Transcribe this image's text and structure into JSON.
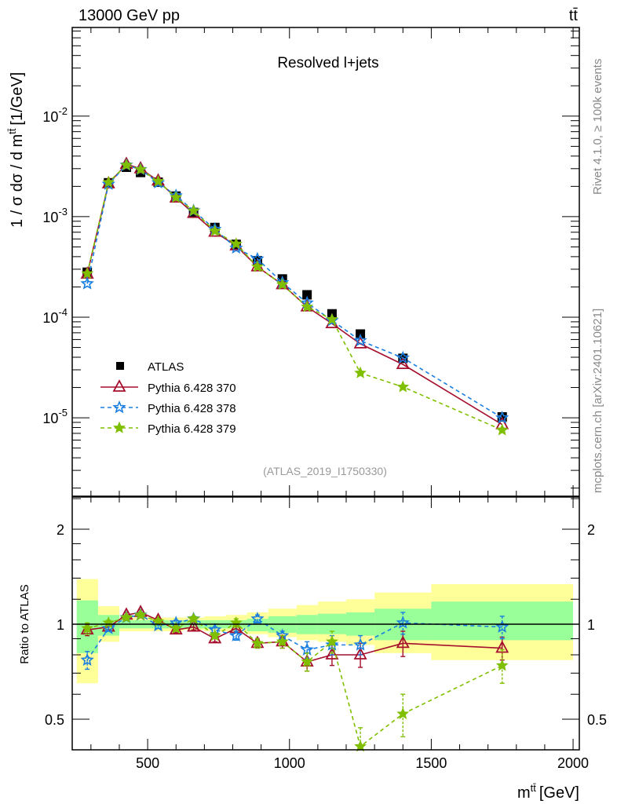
{
  "header": {
    "left": "13000 GeV pp",
    "right": "tt̄"
  },
  "side_text": {
    "top": "Rivet 4.1.0, ≥ 100k events",
    "bottom": "mcplots.cern.ch [arXiv:2401.10621]"
  },
  "chart_data": {
    "type": "line",
    "title": "Resolved l+jets",
    "analysis_label": "(ATLAS_2019_I1750330)",
    "xlabel_main": "m",
    "xlabel_sup": "tt̄",
    "xlabel_unit": "[GeV]",
    "ylabel_main": "1 / σ dσ / d m",
    "ylabel_sup": "tt̄",
    "ylabel_unit": "[1/GeV]",
    "ratio_ylabel": "Ratio to ATLAS",
    "xlim": [
      234,
      2022
    ],
    "ylim": [
      1.66e-06,
      0.076
    ],
    "yscale": "log",
    "ratio_ylim": [
      0.4,
      2.53
    ],
    "ratio_yscale": "log",
    "x_ticks": [
      "500",
      "1000",
      "1500",
      "2000"
    ],
    "x_tick_values": [
      500,
      1000,
      1500,
      2000
    ],
    "y_ticks": [
      {
        "base": "10",
        "exp": "-2",
        "value": 0.01
      },
      {
        "base": "10",
        "exp": "-3",
        "value": 0.001
      },
      {
        "base": "10",
        "exp": "-4",
        "value": 0.0001
      },
      {
        "base": "10",
        "exp": "-5",
        "value": 1e-05
      }
    ],
    "ratio_ticks": [
      {
        "label": "2",
        "value": 2
      },
      {
        "label": "1",
        "value": 1
      },
      {
        "label": "0.5",
        "value": 0.5
      }
    ],
    "legend_position": "lower-left",
    "bin_edges": [
      250,
      325,
      400,
      450,
      500,
      575,
      625,
      700,
      775,
      850,
      925,
      1025,
      1100,
      1200,
      1300,
      1500,
      2000
    ],
    "x": [
      287,
      362,
      425,
      475,
      537,
      600,
      662,
      737,
      812,
      887,
      975,
      1062,
      1150,
      1250,
      1400,
      1750
    ],
    "data": {
      "name": "ATLAS",
      "color": "#000000",
      "values": [
        0.00028,
        0.00217,
        0.0031,
        0.00275,
        0.0022,
        0.0016,
        0.0011,
        0.00078,
        0.00053,
        0.000365,
        0.00024,
        0.000167,
        0.000108,
        6.8e-05,
        3.9e-05,
        1.02e-05
      ],
      "stat_band": [
        [
          0.81,
          1.19
        ],
        [
          0.92,
          1.07
        ],
        [
          0.97,
          1.03
        ],
        [
          0.97,
          1.03
        ],
        [
          0.97,
          1.03
        ],
        [
          0.97,
          1.02
        ],
        [
          0.97,
          1.03
        ],
        [
          0.97,
          1.03
        ],
        [
          0.97,
          1.03
        ],
        [
          0.95,
          1.04
        ],
        [
          0.94,
          1.06
        ],
        [
          0.93,
          1.07
        ],
        [
          0.93,
          1.08
        ],
        [
          0.92,
          1.09
        ],
        [
          0.89,
          1.12
        ],
        [
          0.89,
          1.18
        ]
      ],
      "total_band": [
        [
          0.65,
          1.39
        ],
        [
          0.88,
          1.14
        ],
        [
          0.95,
          1.05
        ],
        [
          0.95,
          1.05
        ],
        [
          0.95,
          1.05
        ],
        [
          0.95,
          1.05
        ],
        [
          0.96,
          1.05
        ],
        [
          0.95,
          1.06
        ],
        [
          0.95,
          1.07
        ],
        [
          0.93,
          1.09
        ],
        [
          0.91,
          1.12
        ],
        [
          0.89,
          1.15
        ],
        [
          0.88,
          1.18
        ],
        [
          0.86,
          1.2
        ],
        [
          0.81,
          1.26
        ],
        [
          0.77,
          1.34
        ]
      ]
    },
    "series": [
      {
        "name": "Pythia 6.428 370",
        "color": "#a50f2d",
        "style": "solid",
        "marker": "open-triangle",
        "ratio": [
          0.96,
          0.98,
          1.07,
          1.09,
          1.03,
          0.96,
          0.98,
          0.9,
          0.97,
          0.87,
          0.88,
          0.76,
          0.8,
          0.8,
          0.87,
          0.84
        ],
        "ratio_err": [
          0.04,
          0.02,
          0.02,
          0.02,
          0.02,
          0.02,
          0.02,
          0.02,
          0.03,
          0.03,
          0.04,
          0.05,
          0.06,
          0.07,
          0.08,
          0.07
        ]
      },
      {
        "name": "Pythia 6.428 378",
        "color": "#1a7fe0",
        "style": "dashed",
        "marker": "open-star",
        "ratio": [
          0.77,
          0.97,
          1.05,
          1.07,
          0.99,
          1.01,
          1.04,
          0.96,
          0.92,
          1.04,
          0.92,
          0.83,
          0.86,
          0.86,
          1.01,
          0.98
        ],
        "ratio_err": [
          0.05,
          0.02,
          0.02,
          0.02,
          0.02,
          0.02,
          0.02,
          0.02,
          0.03,
          0.03,
          0.03,
          0.05,
          0.06,
          0.06,
          0.08,
          0.08
        ]
      },
      {
        "name": "Pythia 6.428 379",
        "color": "#7fbf00",
        "style": "dashed",
        "marker": "filled-star",
        "ratio": [
          0.97,
          1.01,
          1.05,
          1.07,
          1.02,
          0.97,
          1.04,
          0.92,
          1.01,
          0.87,
          0.88,
          0.76,
          0.88,
          0.41,
          0.52,
          0.74
        ],
        "ratio_err": [
          0.04,
          0.02,
          0.02,
          0.02,
          0.02,
          0.02,
          0.02,
          0.02,
          0.03,
          0.03,
          0.04,
          0.05,
          0.07,
          0.06,
          0.08,
          0.09
        ]
      }
    ]
  }
}
